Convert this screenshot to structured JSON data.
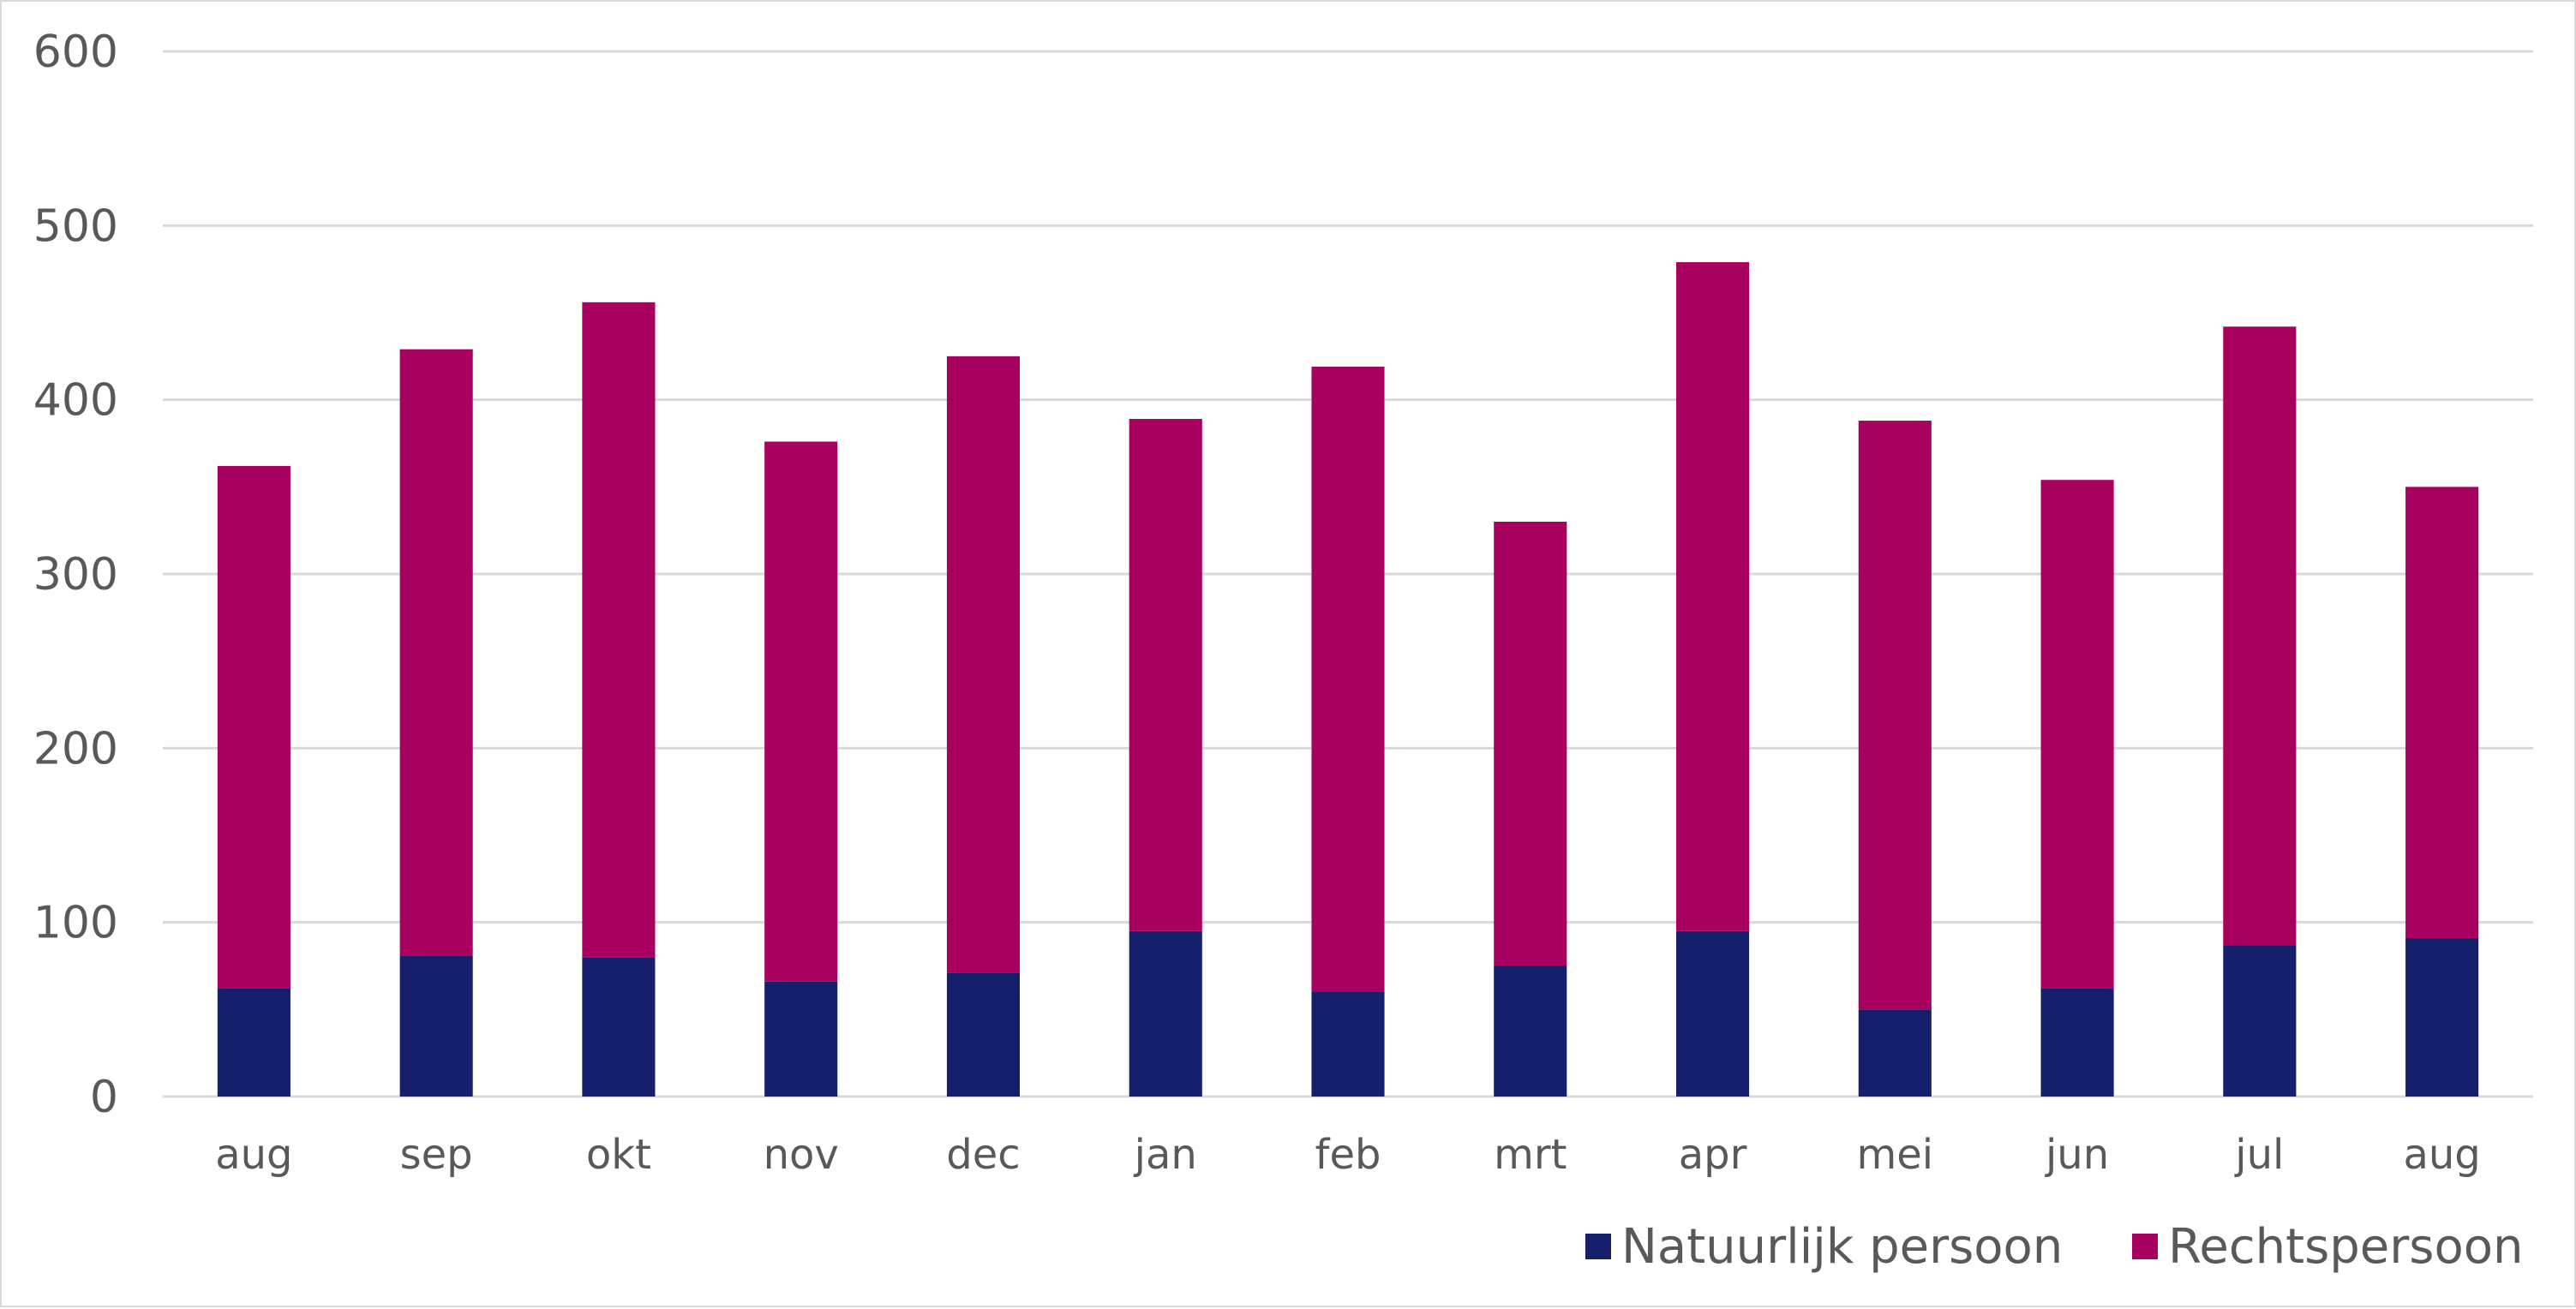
{
  "chart_data": {
    "type": "bar",
    "stacked": true,
    "categories": [
      "aug",
      "sep",
      "okt",
      "nov",
      "dec",
      "jan",
      "feb",
      "mrt",
      "apr",
      "mei",
      "jun",
      "jul",
      "aug"
    ],
    "series": [
      {
        "name": "Natuurlijk persoon",
        "color": "#161f6c",
        "values": [
          62,
          81,
          80,
          66,
          71,
          95,
          60,
          75,
          95,
          50,
          62,
          87,
          91
        ]
      },
      {
        "name": "Rechtspersoon",
        "color": "#a8005f",
        "values": [
          300,
          348,
          376,
          310,
          354,
          294,
          359,
          255,
          384,
          338,
          292,
          355,
          259
        ]
      }
    ],
    "title": "",
    "xlabel": "",
    "ylabel": "",
    "ylim": [
      0,
      600
    ],
    "yticks": [
      "0",
      "100",
      "200",
      "300",
      "400",
      "500",
      "600"
    ],
    "grid": true,
    "legend_position": "bottom-right"
  }
}
